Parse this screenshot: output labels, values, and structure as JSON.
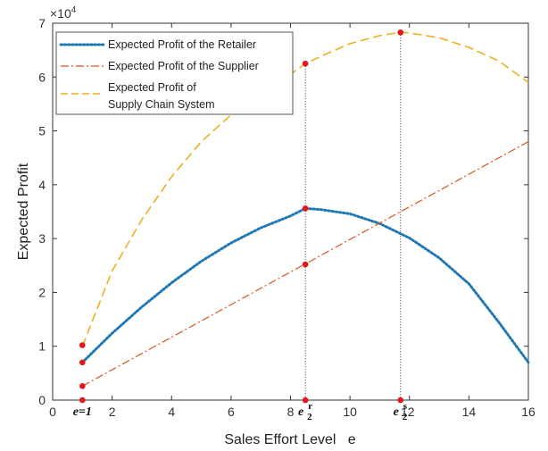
{
  "chart_data": {
    "type": "line",
    "exponent_label": "×10",
    "exponent_power": "4",
    "xlabel": "Sales Effort Level   e",
    "ylabel": "Expected Profit",
    "xlim": [
      0,
      16
    ],
    "ylim": [
      0,
      70000
    ],
    "xticks": [
      0,
      2,
      4,
      6,
      8,
      10,
      12,
      14,
      16
    ],
    "yticks": [
      0,
      10000,
      20000,
      30000,
      40000,
      50000,
      60000,
      70000
    ],
    "ytick_labels": [
      "0",
      "1",
      "2",
      "3",
      "4",
      "5",
      "6",
      "7"
    ],
    "grid": false,
    "legend_position": "top-left",
    "series": [
      {
        "name": "Expected Profit of the Retailer",
        "color": "#1f77b4",
        "style": "dotted",
        "x": [
          1,
          2,
          3,
          4,
          5,
          6,
          7,
          8,
          8.5,
          9,
          10,
          11,
          12,
          13,
          14,
          15,
          16
        ],
        "y": [
          7000,
          12400,
          17300,
          21800,
          25800,
          29200,
          32000,
          34200,
          35600,
          35400,
          34600,
          32800,
          30100,
          26400,
          21600,
          14500,
          7000
        ]
      },
      {
        "name": "Expected Profit of the Supplier",
        "color": "#d9541e",
        "style": "dashdot",
        "x": [
          1,
          16
        ],
        "y": [
          2600,
          48000
        ]
      },
      {
        "name_lines": [
          "Expected Profit of",
          "Supply Chain System"
        ],
        "color": "#edb120",
        "style": "dashed",
        "x": [
          1,
          2,
          3,
          4,
          5,
          6,
          7,
          8,
          8.5,
          9,
          10,
          11,
          11.7,
          12,
          13,
          14,
          15,
          16
        ],
        "y": [
          10000,
          24000,
          33500,
          41500,
          48000,
          53000,
          57200,
          60500,
          62500,
          63800,
          66200,
          67700,
          68300,
          68200,
          67300,
          65500,
          63000,
          59000
        ]
      }
    ],
    "markers": [
      {
        "x": 1,
        "y": 10200
      },
      {
        "x": 1,
        "y": 7000
      },
      {
        "x": 1,
        "y": 2600
      },
      {
        "x": 1,
        "y": 0
      },
      {
        "x": 8.5,
        "y": 62500
      },
      {
        "x": 8.5,
        "y": 35600
      },
      {
        "x": 8.5,
        "y": 25200
      },
      {
        "x": 8.5,
        "y": 0
      },
      {
        "x": 11.7,
        "y": 68300
      },
      {
        "x": 11.7,
        "y": 0
      }
    ],
    "vlines": [
      {
        "x": 8.5,
        "y_top": 62500
      },
      {
        "x": 11.7,
        "y_top": 68300
      }
    ],
    "annotations": [
      {
        "x": 1,
        "main": "e=1",
        "sub": "",
        "sup": ""
      },
      {
        "x": 8.5,
        "main": "e",
        "sub": "2",
        "sup": "r"
      },
      {
        "x": 11.7,
        "main": "e",
        "sub": "2",
        "sup": "s"
      }
    ]
  }
}
